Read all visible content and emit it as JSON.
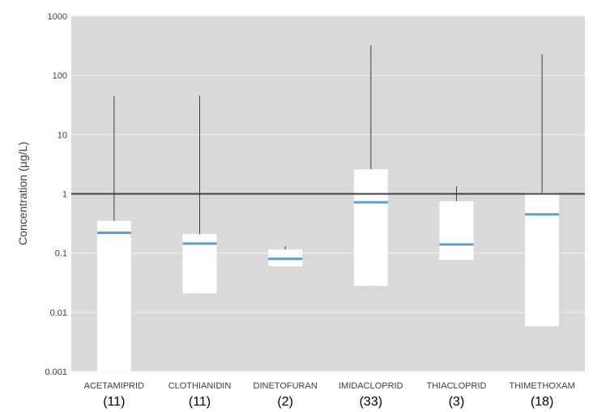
{
  "chart_data": {
    "type": "box",
    "title": "",
    "xlabel": "",
    "ylabel": "Concentration (µg/L)",
    "yscale": "log",
    "ylim": [
      0.001,
      1000
    ],
    "yticks": [
      "0.001",
      "0.01",
      "0.1",
      "1",
      "10",
      "100",
      "1000"
    ],
    "grid": true,
    "reference_line": 1,
    "categories": [
      "ACETAMIPRID",
      "CLOTHIANIDIN",
      "DINETOFURAN",
      "IMIDACLOPRID",
      "THIACLOPRID",
      "THIMETHOXAM"
    ],
    "counts": [
      "(11)",
      "(11)",
      "(2)",
      "(33)",
      "(3)",
      "(18)"
    ],
    "boxes": [
      {
        "whisker_low": 0.001,
        "q1": 0.001,
        "median": 0.22,
        "q3": 0.35,
        "whisker_high": 45
      },
      {
        "whisker_low": 0.021,
        "q1": 0.021,
        "median": 0.145,
        "q3": 0.21,
        "whisker_high": 45
      },
      {
        "whisker_low": 0.06,
        "q1": 0.06,
        "median": 0.08,
        "q3": 0.115,
        "whisker_high": 0.13
      },
      {
        "whisker_low": 0.028,
        "q1": 0.028,
        "median": 0.72,
        "q3": 2.6,
        "whisker_high": 320
      },
      {
        "whisker_low": 0.077,
        "q1": 0.077,
        "median": 0.14,
        "q3": 0.75,
        "whisker_high": 1.35
      },
      {
        "whisker_low": 0.0058,
        "q1": 0.0058,
        "median": 0.45,
        "q3": 1.05,
        "whisker_high": 230
      }
    ],
    "colors": {
      "background": "#d9d9d9",
      "box_fill": "#ffffff",
      "median": "#5b9bd5",
      "whisker": "#404040",
      "gridline": "#f2f2f2",
      "reference_line": "#404040"
    }
  }
}
